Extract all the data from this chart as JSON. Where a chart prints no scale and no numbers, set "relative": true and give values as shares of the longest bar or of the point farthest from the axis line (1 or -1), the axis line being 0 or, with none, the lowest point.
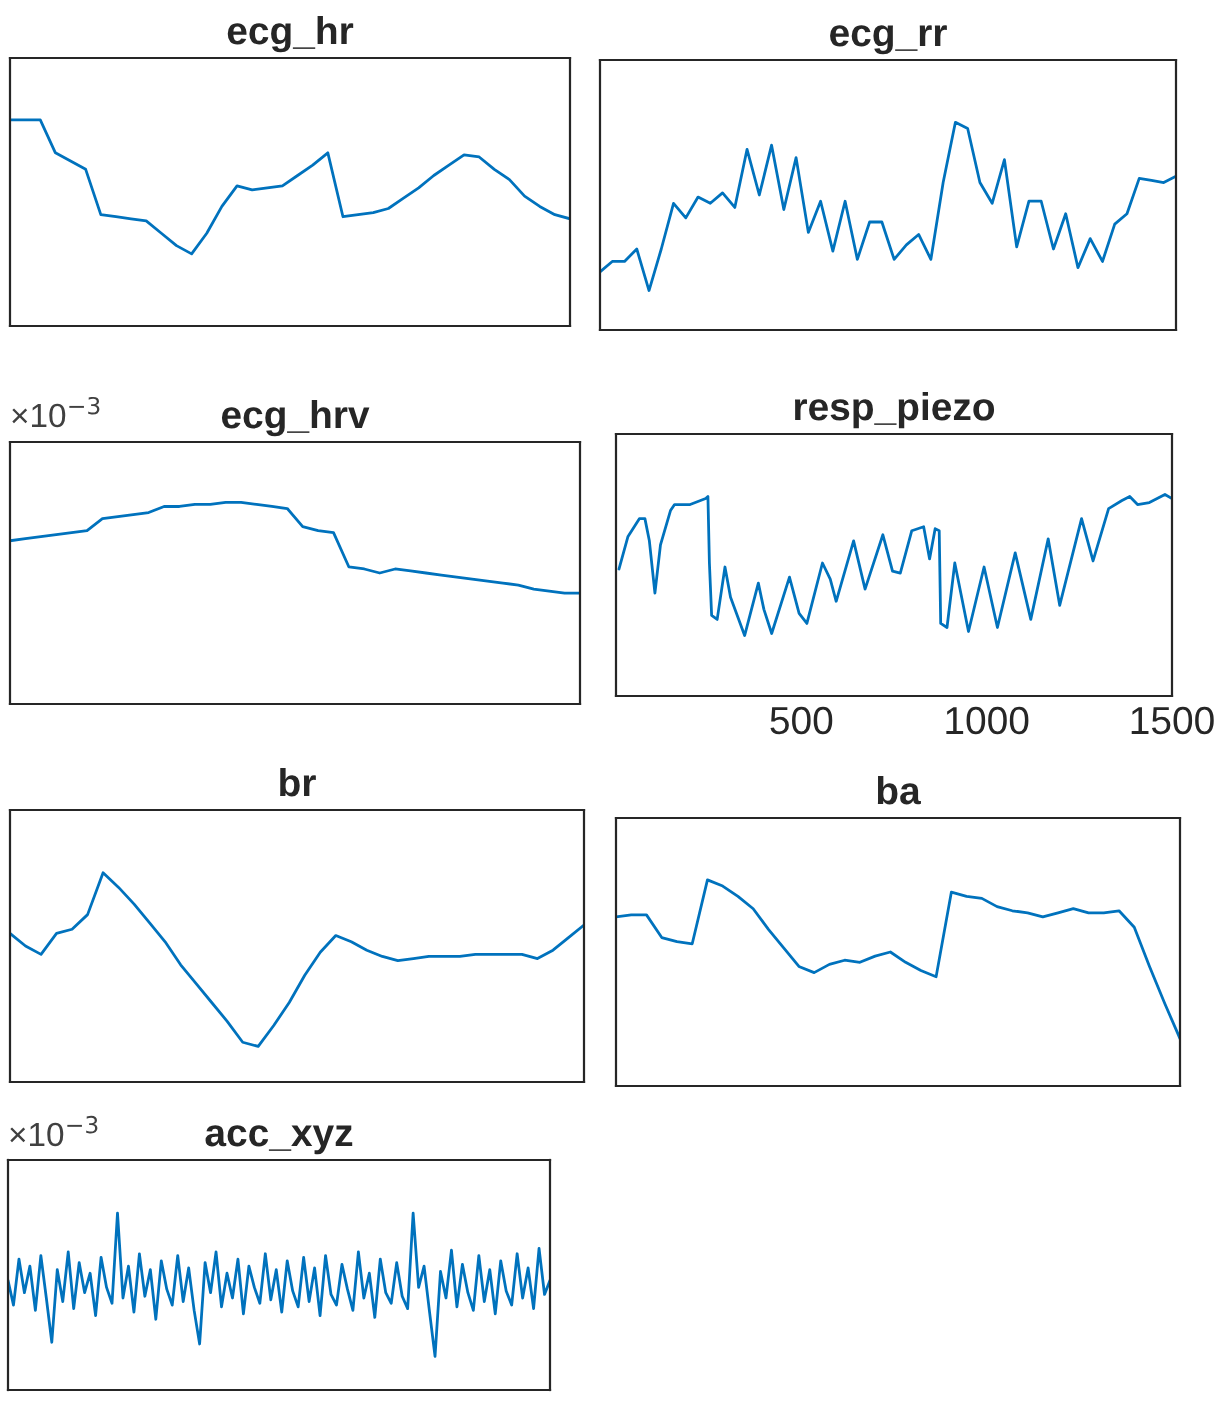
{
  "chart_data": [
    {
      "type": "line",
      "title": "ecg_hr",
      "relative": true,
      "categories": [
        null,
        null,
        null,
        null,
        null,
        null,
        null,
        null,
        null,
        null,
        null,
        null,
        null,
        null,
        null,
        null,
        null,
        null,
        null,
        null,
        null,
        null,
        null,
        null,
        null,
        null,
        null,
        null,
        null,
        null,
        null,
        null,
        null,
        null,
        null,
        null,
        null,
        null
      ],
      "series": [
        {
          "color": "#0072bd",
          "values": [
            1,
            1,
            1,
            0.84,
            0.8,
            0.76,
            0.54,
            0.53,
            0.52,
            0.51,
            0.45,
            0.39,
            0.35,
            0.45,
            0.58,
            0.68,
            0.66,
            0.67,
            0.68,
            0.73,
            0.78,
            0.84,
            0.53,
            0.54,
            0.55,
            0.57,
            0.62,
            0.67,
            0.73,
            0.78,
            0.83,
            0.82,
            0.76,
            0.71,
            0.63,
            0.58,
            0.54,
            0.52
          ]
        }
      ]
    },
    {
      "type": "line",
      "title": "ecg_rr",
      "relative": true,
      "categories": [
        null,
        null,
        null,
        null,
        null,
        null,
        null,
        null,
        null,
        null,
        null,
        null,
        null,
        null,
        null,
        null,
        null,
        null,
        null,
        null,
        null,
        null,
        null,
        null,
        null,
        null,
        null,
        null,
        null,
        null,
        null,
        null,
        null,
        null,
        null,
        null,
        null,
        null,
        null,
        null,
        null,
        null,
        null,
        null,
        null,
        null,
        null,
        null
      ],
      "series": [
        {
          "color": "#0072bd",
          "values": [
            0.28,
            0.33,
            0.33,
            0.39,
            0.19,
            0.39,
            0.61,
            0.54,
            0.64,
            0.61,
            0.66,
            0.59,
            0.87,
            0.65,
            0.89,
            0.58,
            0.83,
            0.47,
            0.62,
            0.38,
            0.62,
            0.34,
            0.52,
            0.52,
            0.34,
            0.41,
            0.46,
            0.34,
            0.71,
            1.0,
            0.97,
            0.71,
            0.61,
            0.82,
            0.4,
            0.62,
            0.62,
            0.39,
            0.56,
            0.3,
            0.44,
            0.33,
            0.51,
            0.56,
            0.73,
            0.72,
            0.71,
            0.74
          ]
        }
      ]
    },
    {
      "type": "line",
      "title": "ecg_hrv",
      "relative": true,
      "annotations": [
        "×10$^{−3}$"
      ],
      "categories": [
        null,
        null,
        null,
        null,
        null,
        null,
        null,
        null,
        null,
        null,
        null,
        null,
        null,
        null,
        null,
        null,
        null,
        null,
        null,
        null,
        null,
        null,
        null,
        null,
        null,
        null,
        null,
        null,
        null,
        null,
        null,
        null,
        null,
        null,
        null,
        null,
        null,
        null
      ],
      "series": [
        {
          "color": "#0072bd",
          "values": [
            0.81,
            0.82,
            0.83,
            0.84,
            0.85,
            0.86,
            0.92,
            0.93,
            0.94,
            0.95,
            0.98,
            0.98,
            0.99,
            0.99,
            1.0,
            1.0,
            0.99,
            0.98,
            0.97,
            0.88,
            0.86,
            0.85,
            0.68,
            0.67,
            0.65,
            0.67,
            0.66,
            0.65,
            0.64,
            0.63,
            0.62,
            0.61,
            0.6,
            0.59,
            0.57,
            0.56,
            0.55,
            0.55
          ]
        }
      ]
    },
    {
      "type": "line",
      "title": "resp_piezo",
      "relative": true,
      "tick_labels": "x",
      "xlim": [
        0,
        1500
      ],
      "xticks": [
        500,
        1000,
        1500
      ],
      "series": [
        {
          "color": "#0072bd",
          "x": [
            8,
            32,
            63,
            78,
            90,
            105,
            120,
            147,
            158,
            200,
            242,
            248,
            252,
            258,
            273,
            294,
            309,
            347,
            384,
            399,
            420,
            468,
            494,
            515,
            557,
            578,
            594,
            641,
            672,
            720,
            746,
            767,
            798,
            830,
            846,
            861,
            872,
            876,
            893,
            914,
            951,
            993,
            1029,
            1077,
            1119,
            1166,
            1197,
            1256,
            1287,
            1329,
            1365,
            1386,
            1407,
            1439,
            1481,
            1500
          ],
          "values": [
            0.63,
            0.79,
            0.88,
            0.88,
            0.77,
            0.51,
            0.75,
            0.92,
            0.95,
            0.95,
            0.98,
            0.99,
            0.66,
            0.4,
            0.38,
            0.64,
            0.49,
            0.3,
            0.56,
            0.43,
            0.31,
            0.59,
            0.41,
            0.36,
            0.66,
            0.58,
            0.47,
            0.77,
            0.53,
            0.8,
            0.62,
            0.61,
            0.82,
            0.84,
            0.68,
            0.83,
            0.82,
            0.36,
            0.34,
            0.66,
            0.32,
            0.64,
            0.34,
            0.71,
            0.38,
            0.78,
            0.45,
            0.88,
            0.67,
            0.93,
            0.97,
            0.99,
            0.95,
            0.96,
            1.0,
            0.98
          ]
        }
      ]
    },
    {
      "type": "line",
      "title": "br",
      "relative": true,
      "categories": [
        null,
        null,
        null,
        null,
        null,
        null,
        null,
        null,
        null,
        null,
        null,
        null,
        null,
        null,
        null,
        null,
        null,
        null,
        null,
        null,
        null,
        null,
        null,
        null,
        null,
        null,
        null,
        null,
        null,
        null,
        null,
        null,
        null,
        null,
        null,
        null,
        null,
        null
      ],
      "series": [
        {
          "color": "#0072bd",
          "values": [
            0.71,
            0.65,
            0.61,
            0.71,
            0.73,
            0.8,
            1.0,
            0.93,
            0.85,
            0.76,
            0.67,
            0.56,
            0.47,
            0.38,
            0.29,
            0.19,
            0.17,
            0.27,
            0.38,
            0.51,
            0.62,
            0.7,
            0.67,
            0.63,
            0.6,
            0.58,
            0.59,
            0.6,
            0.6,
            0.6,
            0.61,
            0.61,
            0.61,
            0.61,
            0.59,
            0.63,
            0.69,
            0.75
          ]
        }
      ]
    },
    {
      "type": "line",
      "title": "ba",
      "relative": true,
      "categories": [
        null,
        null,
        null,
        null,
        null,
        null,
        null,
        null,
        null,
        null,
        null,
        null,
        null,
        null,
        null,
        null,
        null,
        null,
        null,
        null,
        null,
        null,
        null,
        null,
        null,
        null,
        null,
        null,
        null,
        null,
        null,
        null,
        null,
        null,
        null,
        null,
        null,
        null
      ],
      "series": [
        {
          "color": "#0072bd",
          "values": [
            0.82,
            0.83,
            0.83,
            0.72,
            0.7,
            0.69,
            1.0,
            0.97,
            0.92,
            0.86,
            0.76,
            0.67,
            0.58,
            0.55,
            0.59,
            0.61,
            0.6,
            0.63,
            0.65,
            0.6,
            0.56,
            0.53,
            0.94,
            0.92,
            0.91,
            0.87,
            0.85,
            0.84,
            0.82,
            0.84,
            0.86,
            0.84,
            0.84,
            0.85,
            0.77,
            0.58,
            0.4,
            0.23
          ]
        }
      ]
    },
    {
      "type": "line",
      "title": "acc_xyz",
      "relative": true,
      "annotations": [
        "×10$^{−3}$"
      ],
      "categories": [
        null,
        null,
        null,
        null,
        null,
        null,
        null,
        null,
        null,
        null,
        null,
        null,
        null,
        null,
        null,
        null,
        null,
        null,
        null,
        null,
        null,
        null,
        null,
        null,
        null,
        null,
        null,
        null,
        null,
        null,
        null,
        null,
        null,
        null,
        null,
        null,
        null,
        null,
        null,
        null,
        null,
        null,
        null,
        null,
        null,
        null,
        null,
        null,
        null,
        null,
        null,
        null,
        null,
        null,
        null,
        null,
        null,
        null,
        null,
        null,
        null,
        null,
        null,
        null,
        null,
        null,
        null,
        null,
        null,
        null,
        null,
        null,
        null,
        null,
        null,
        null,
        null,
        null,
        null,
        null,
        null,
        null,
        null,
        null,
        null,
        null,
        null,
        null,
        null,
        null,
        null,
        null,
        null,
        null,
        null,
        null,
        null,
        null,
        null,
        null
      ],
      "series": [
        {
          "color": "#0072bd",
          "values": [
            0.62,
            0.48,
            0.74,
            0.55,
            0.7,
            0.45,
            0.76,
            0.52,
            0.27,
            0.68,
            0.5,
            0.78,
            0.46,
            0.72,
            0.55,
            0.66,
            0.42,
            0.75,
            0.58,
            0.49,
            1.0,
            0.52,
            0.7,
            0.44,
            0.77,
            0.53,
            0.68,
            0.4,
            0.73,
            0.57,
            0.48,
            0.76,
            0.5,
            0.69,
            0.45,
            0.26,
            0.72,
            0.55,
            0.78,
            0.47,
            0.66,
            0.52,
            0.74,
            0.43,
            0.7,
            0.58,
            0.49,
            0.77,
            0.51,
            0.68,
            0.44,
            0.73,
            0.56,
            0.47,
            0.75,
            0.5,
            0.69,
            0.42,
            0.76,
            0.54,
            0.48,
            0.71,
            0.57,
            0.45,
            0.78,
            0.52,
            0.66,
            0.41,
            0.74,
            0.55,
            0.49,
            0.72,
            0.53,
            0.46,
            1.0,
            0.58,
            0.7,
            0.44,
            0.19,
            0.67,
            0.52,
            0.79,
            0.47,
            0.71,
            0.55,
            0.45,
            0.76,
            0.5,
            0.68,
            0.43,
            0.73,
            0.56,
            0.48,
            0.77,
            0.52,
            0.69,
            0.46,
            0.8,
            0.54,
            0.62
          ]
        }
      ]
    }
  ]
}
